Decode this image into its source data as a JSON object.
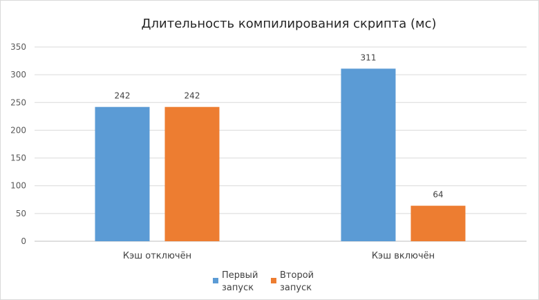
{
  "chart_data": {
    "type": "bar",
    "title": "Длительность компилирования скрипта (мс)",
    "xlabel": "",
    "ylabel": "",
    "categories": [
      "Кэш отключён",
      "Кэш включён"
    ],
    "series": [
      {
        "name": "Первый запуск",
        "name_lines": [
          "Первый",
          "запуск"
        ],
        "color": "#5B9BD5",
        "values": [
          242,
          311
        ]
      },
      {
        "name": "Второй запуск",
        "name_lines": [
          "Второй",
          "запуск"
        ],
        "color": "#ED7D31",
        "values": [
          242,
          64
        ]
      }
    ],
    "ylim": [
      0,
      350
    ],
    "yticks": [
      0,
      50,
      100,
      150,
      200,
      250,
      300,
      350
    ],
    "grid": true,
    "data_labels": true,
    "legend": "bottom",
    "gridline_color": "#D9D9D9"
  }
}
